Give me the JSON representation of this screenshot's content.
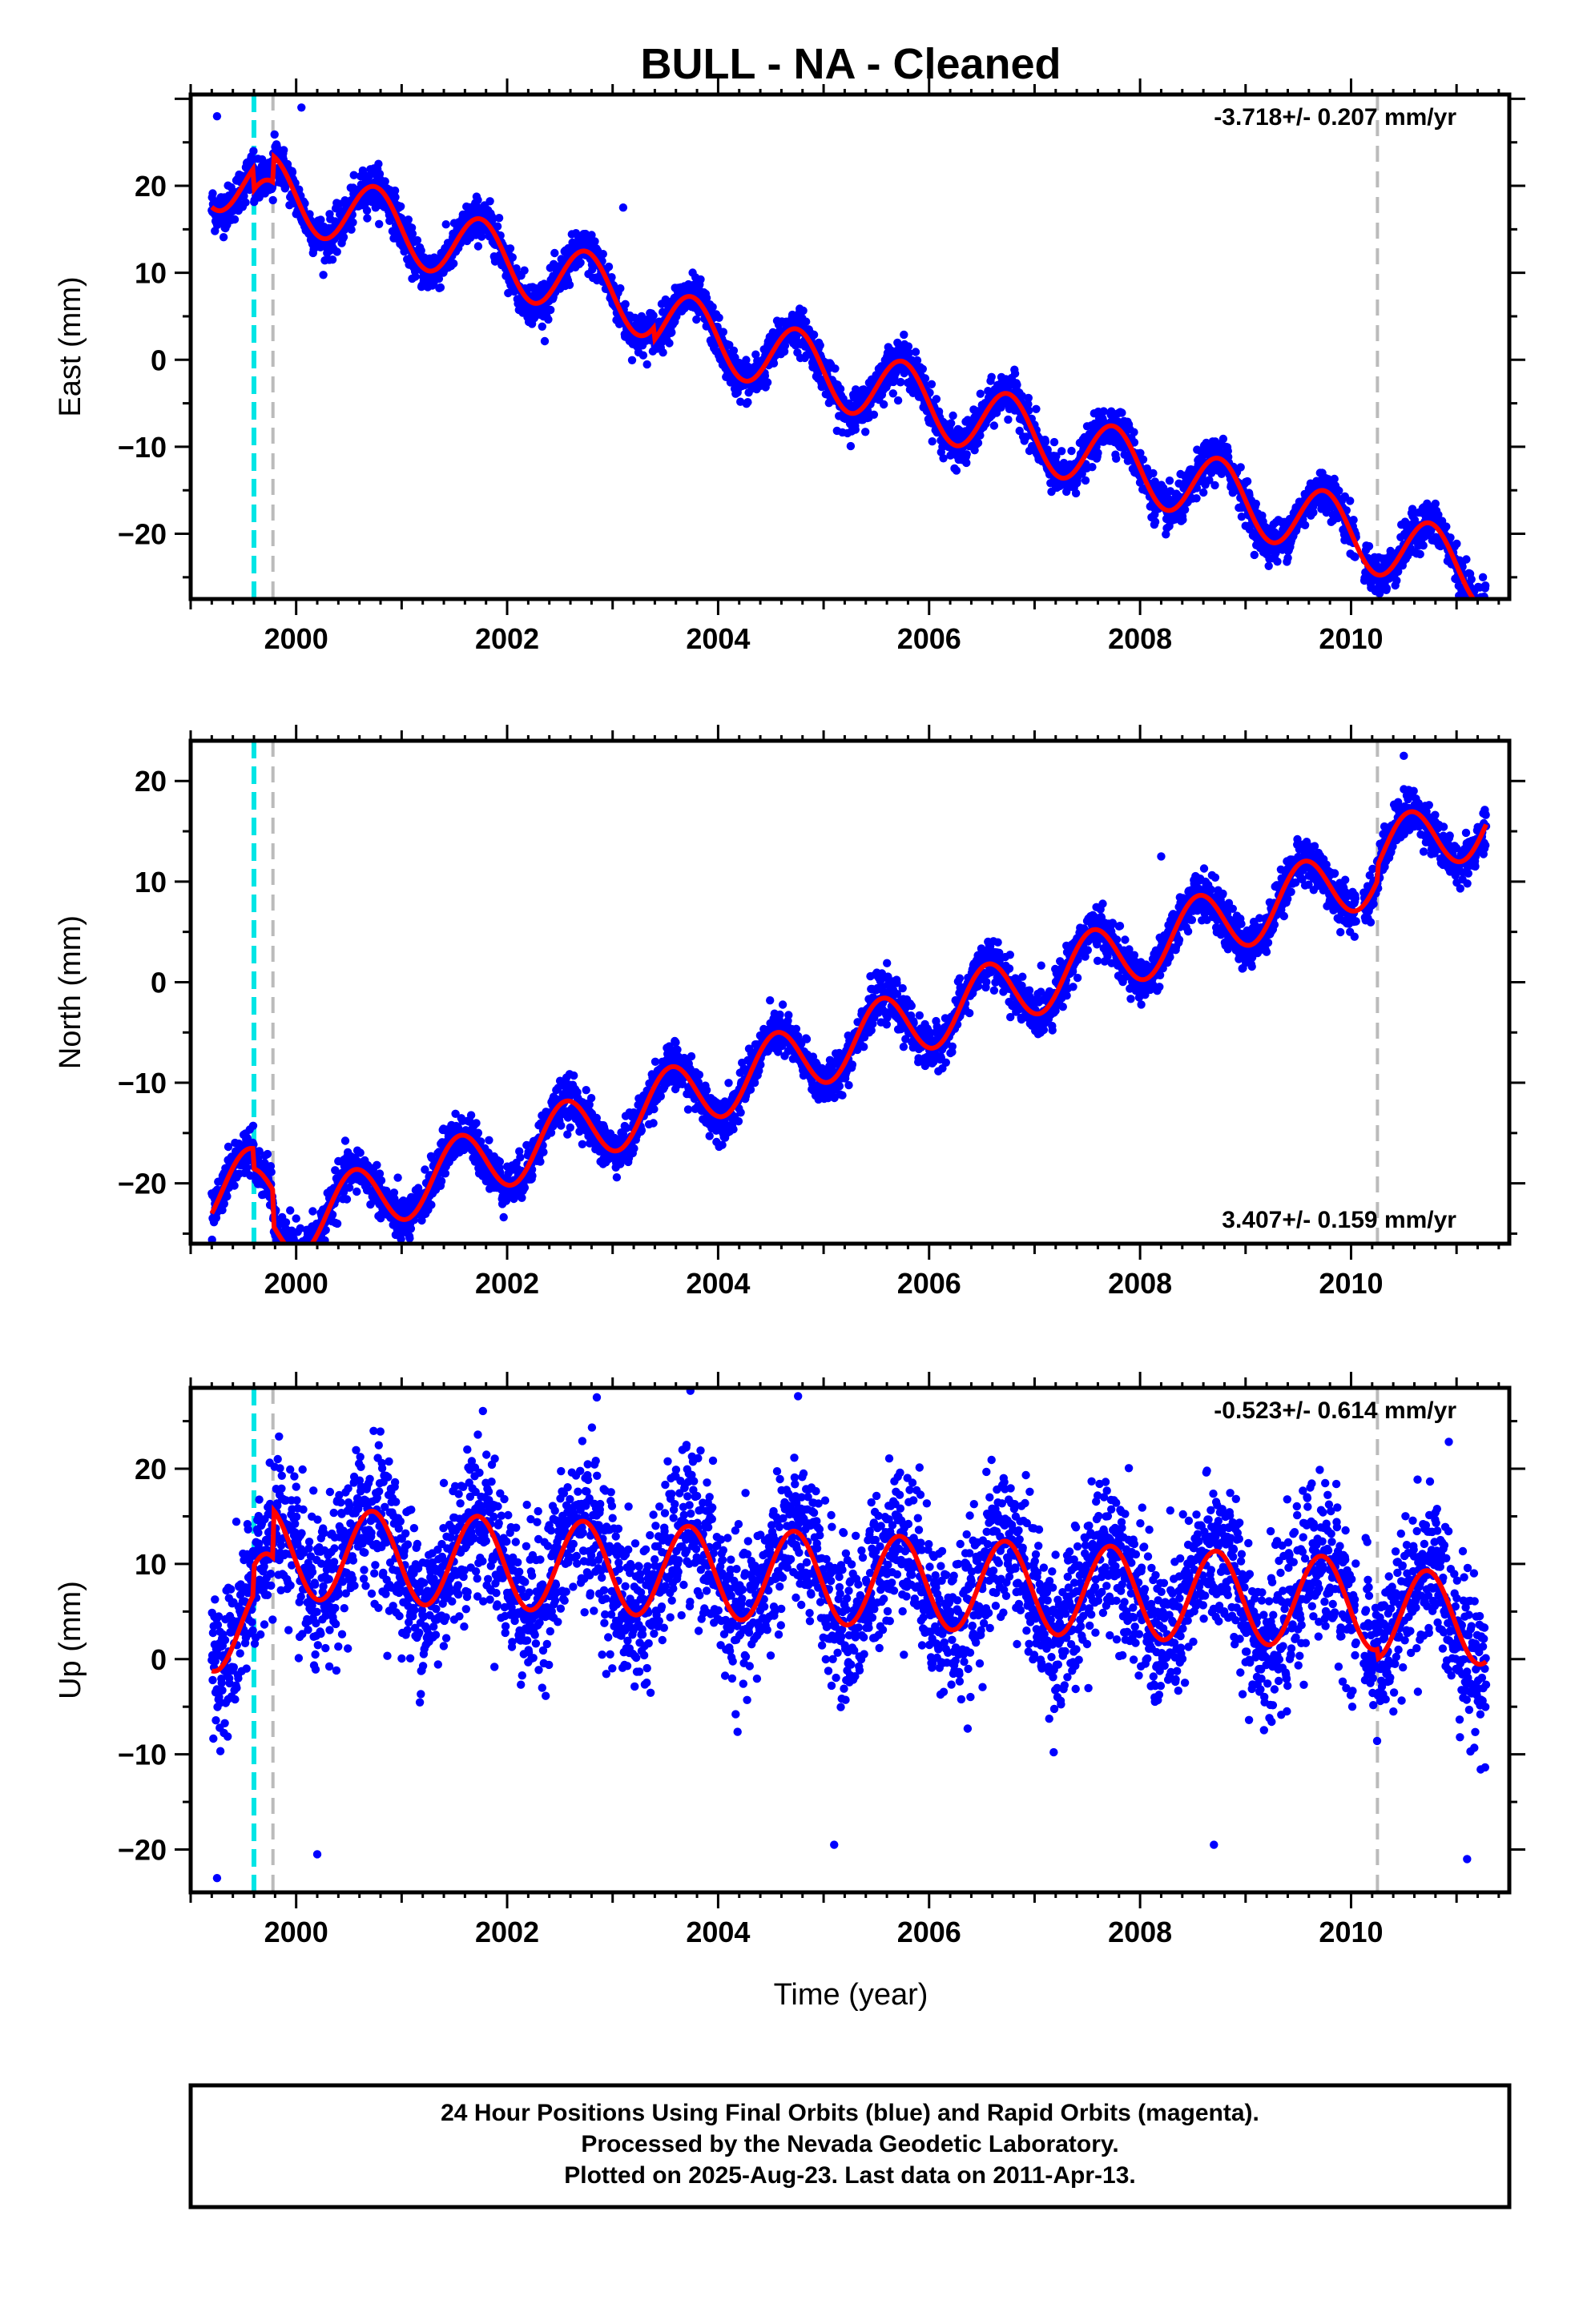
{
  "title": "BULL  - NA - Cleaned",
  "xlabel": "Time (year)",
  "footer": {
    "lines": [
      "24 Hour Positions Using Final Orbits (blue) and Rapid Orbits (magenta).",
      "Processed by the Nevada Geodetic Laboratory.",
      "Plotted on 2025-Aug-23. Last data on 2011-Apr-13."
    ]
  },
  "colors": {
    "data": "#0000ff",
    "model": "#ff0000",
    "antenna_line": "#00e5e5",
    "event_line": "#bbbbbb",
    "frame": "#000000"
  },
  "chart_data": [
    {
      "type": "scatter",
      "component": "east",
      "ylabel": "East (mm)",
      "rate_text": "-3.718+/- 0.207 mm/yr",
      "rate_position": "top-right",
      "xlim": [
        1999.0,
        2011.5
      ],
      "ylim": [
        -27.5,
        30.5
      ],
      "xticks": [
        2000,
        2002,
        2004,
        2006,
        2008,
        2010
      ],
      "yticks": [
        -20,
        -10,
        0,
        10,
        20
      ],
      "data_start": 1999.2,
      "data_end": 2011.28,
      "model": {
        "intercept_year": 2005,
        "intercept": -0.3,
        "rate": -3.718,
        "annual_amplitude": 3.9,
        "annual_phase_peak": 0.75,
        "noise_sd": 1.2,
        "n_points": 4000,
        "offsets": [
          [
            1999.6,
            -2.5
          ],
          [
            1999.78,
            3.0
          ],
          [
            2003.4,
            -1.5
          ]
        ]
      },
      "outliers": [
        [
          1999.25,
          28.0
        ],
        [
          2000.05,
          29.0
        ],
        [
          2003.1,
          17.5
        ],
        [
          2011.25,
          -25.0
        ]
      ],
      "vertical_lines": [
        {
          "kind": "antenna",
          "x": 1999.6
        },
        {
          "kind": "event",
          "x": 1999.78
        },
        {
          "kind": "event",
          "x": 2010.25
        }
      ]
    },
    {
      "type": "scatter",
      "component": "north",
      "ylabel": "North (mm)",
      "rate_text": "3.407+/- 0.159 mm/yr",
      "rate_position": "bottom-right",
      "xlim": [
        1999.0,
        2011.5
      ],
      "ylim": [
        -26,
        24
      ],
      "xticks": [
        2000,
        2002,
        2004,
        2006,
        2008,
        2010
      ],
      "yticks": [
        -20,
        -10,
        0,
        10,
        20
      ],
      "data_start": 1999.2,
      "data_end": 2011.28,
      "model": {
        "intercept_year": 2005,
        "intercept": -1.3,
        "rate": 3.407,
        "annual_amplitude": 3.3,
        "annual_phase_peak": 0.55,
        "noise_sd": 1.1,
        "n_points": 4000,
        "offsets": [
          [
            1999.6,
            -2.0
          ],
          [
            1999.78,
            -3.5
          ],
          [
            2010.25,
            1.5
          ]
        ]
      },
      "outliers": [
        [
          1999.9,
          -24.5
        ],
        [
          2000.0,
          -23.5
        ],
        [
          2008.2,
          12.5
        ],
        [
          2010.5,
          22.5
        ]
      ],
      "vertical_lines": [
        {
          "kind": "antenna",
          "x": 1999.6
        },
        {
          "kind": "event",
          "x": 1999.78
        },
        {
          "kind": "event",
          "x": 2010.25
        }
      ]
    },
    {
      "type": "scatter",
      "component": "up",
      "ylabel": "Up (mm)",
      "rate_text": "-0.523+/- 0.614 mm/yr",
      "rate_position": "top-right",
      "xlim": [
        1999.0,
        2011.5
      ],
      "ylim": [
        -24.5,
        28.5
      ],
      "xticks": [
        2000,
        2002,
        2004,
        2006,
        2008,
        2010
      ],
      "yticks": [
        -20,
        -10,
        0,
        10,
        20
      ],
      "data_start": 1999.2,
      "data_end": 2011.28,
      "model": {
        "intercept_year": 2005,
        "intercept": 0.5,
        "rate": -0.523,
        "annual_amplitude": 4.8,
        "annual_phase_peak": 0.72,
        "noise_sd": 4.0,
        "n_points": 4000,
        "offsets": [
          [
            1999.6,
            3.0
          ],
          [
            1999.78,
            5.0
          ],
          [
            2010.25,
            -1.0
          ]
        ]
      },
      "outliers": [
        [
          2002.85,
          27.5
        ],
        [
          2003.7,
          22.5
        ],
        [
          2001.4,
          18.5
        ],
        [
          1999.25,
          -23.0
        ],
        [
          2000.2,
          -20.5
        ],
        [
          2005.1,
          -19.5
        ],
        [
          2008.7,
          -19.5
        ],
        [
          2011.1,
          -21.0
        ]
      ],
      "vertical_lines": [
        {
          "kind": "antenna",
          "x": 1999.6
        },
        {
          "kind": "event",
          "x": 1999.78
        },
        {
          "kind": "event",
          "x": 2010.25
        }
      ]
    }
  ]
}
